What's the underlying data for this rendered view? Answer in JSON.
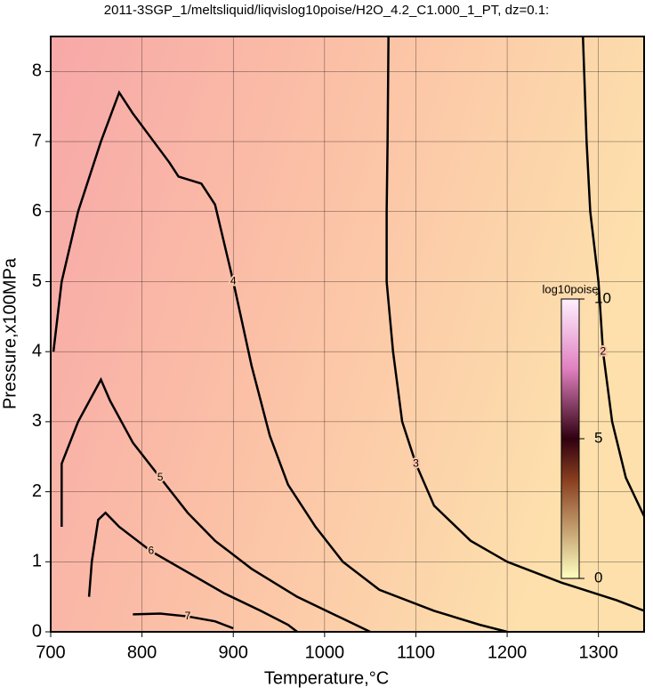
{
  "chart_data": {
    "type": "contour",
    "title": "2011-3SGP_1/meltsliquid/liqvislog10poise/H2O_4.2_C1.000_1_PT, dz=0.1:",
    "x_label": "Temperature,°C",
    "y_label": "Pressure,x100MPa",
    "xlim": [
      700,
      1350
    ],
    "ylim": [
      0,
      8.5
    ],
    "xticks": [
      700,
      800,
      900,
      1000,
      1100,
      1200,
      1300
    ],
    "yticks": [
      0,
      1,
      2,
      3,
      4,
      5,
      6,
      7,
      8
    ],
    "grid": true,
    "color": "#000000",
    "colorbar": {
      "label": "log10poise",
      "lim": [
        0,
        10
      ],
      "ticks": [
        0,
        5,
        10
      ]
    },
    "contours": [
      {
        "level": 2,
        "x": [
          1283,
          1287,
          1291,
          1300,
          1305,
          1315,
          1330,
          1350
        ],
        "y": [
          8.5,
          7,
          6,
          5,
          4,
          3,
          2.2,
          1.65
        ]
      },
      {
        "level": 3,
        "x": [
          1070,
          1069,
          1068,
          1068,
          1075,
          1085,
          1100,
          1120,
          1160,
          1200,
          1260,
          1320,
          1350
        ],
        "y": [
          8.5,
          7,
          6,
          5,
          4,
          3,
          2.4,
          1.8,
          1.3,
          1.0,
          0.7,
          0.45,
          0.3
        ]
      },
      {
        "level": 4,
        "x": [
          703,
          712,
          730,
          755,
          775,
          790,
          830,
          840,
          865,
          880,
          900,
          920,
          940,
          960,
          990,
          1020,
          1060,
          1120,
          1170,
          1200
        ],
        "y": [
          4,
          5,
          6,
          7,
          7.7,
          7.4,
          6.7,
          6.5,
          6.4,
          6.1,
          5,
          3.8,
          2.8,
          2.1,
          1.5,
          1.0,
          0.6,
          0.3,
          0.1,
          0
        ]
      },
      {
        "level": 5,
        "x": [
          712,
          712,
          730,
          755,
          765,
          790,
          820,
          850,
          880,
          920,
          970,
          1010,
          1050
        ],
        "y": [
          1.5,
          2.4,
          3.0,
          3.6,
          3.3,
          2.7,
          2.2,
          1.7,
          1.3,
          0.9,
          0.5,
          0.25,
          0
        ]
      },
      {
        "level": 6,
        "x": [
          742,
          745,
          752,
          760,
          775,
          810,
          850,
          890,
          930,
          960,
          970
        ],
        "y": [
          0.5,
          1,
          1.6,
          1.7,
          1.5,
          1.15,
          0.85,
          0.55,
          0.3,
          0.1,
          0
        ]
      },
      {
        "level": 7,
        "x": [
          790,
          820,
          850,
          880,
          900
        ],
        "y": [
          0.25,
          0.26,
          0.22,
          0.15,
          0.05
        ]
      }
    ]
  }
}
